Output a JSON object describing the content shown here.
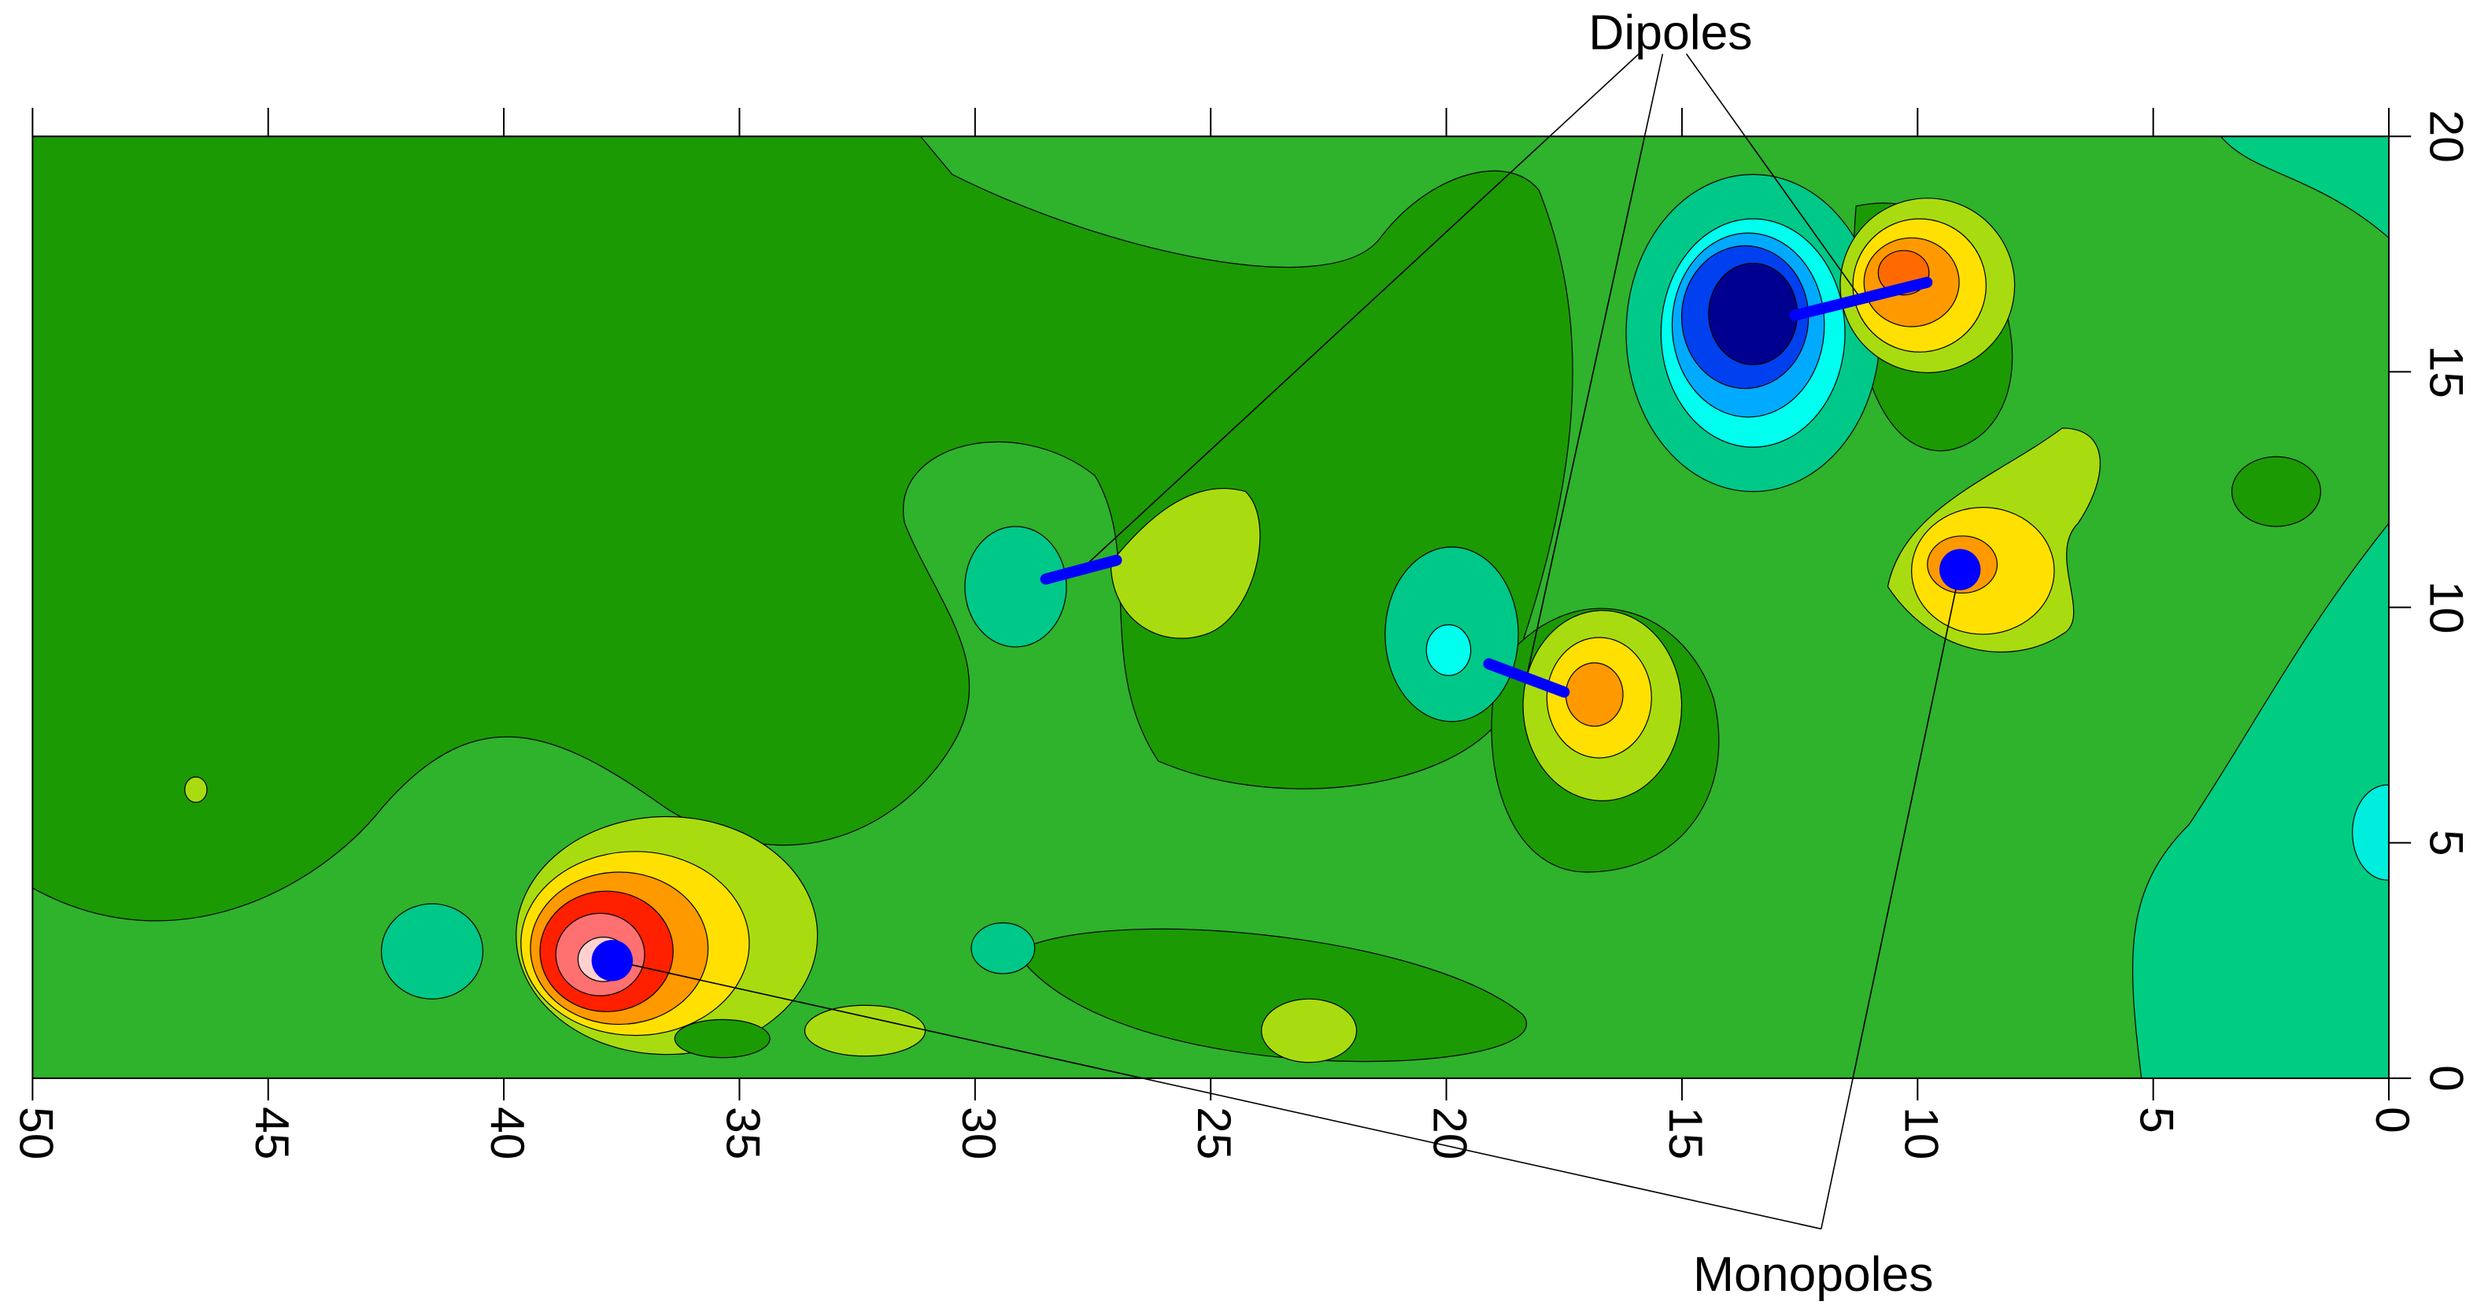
{
  "chart_data": {
    "type": "contour",
    "xlim": [
      50,
      0
    ],
    "ylim": [
      0,
      20
    ],
    "xticks": [
      50,
      45,
      40,
      35,
      30,
      25,
      20,
      15,
      10,
      5,
      0
    ],
    "yticks": [
      0,
      5,
      10,
      15,
      20
    ],
    "dipoles": {
      "label": "Dipoles",
      "color": "#0000ff",
      "x": [
        28.5,
        19.1,
        12.6
      ],
      "y": [
        10.6,
        8.8,
        16.2
      ],
      "x2": [
        27.0,
        17.5,
        9.8
      ],
      "y2": [
        11.0,
        8.2,
        16.9
      ]
    },
    "monopoles": {
      "label": "Monopoles",
      "color": "#0000ff",
      "x": [
        37.7,
        9.1
      ],
      "y": [
        2.5,
        10.8
      ]
    }
  }
}
